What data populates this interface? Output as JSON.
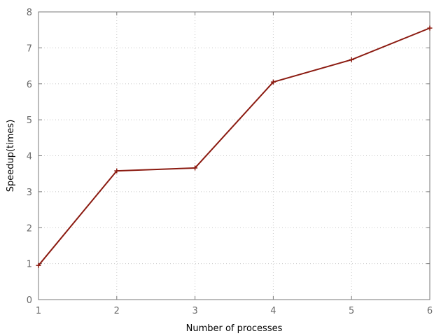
{
  "chart_data": {
    "type": "line",
    "title": "",
    "xlabel": "Number of processes",
    "ylabel": "Speedup(times)",
    "x": [
      1,
      2,
      3,
      4,
      5,
      6
    ],
    "xlim": [
      1,
      6
    ],
    "ylim": [
      0,
      8
    ],
    "xticks": [
      "1",
      "2",
      "3",
      "4",
      "5",
      "6"
    ],
    "yticks": [
      "0",
      "1",
      "2",
      "3",
      "4",
      "5",
      "6",
      "7",
      "8"
    ],
    "grid": true,
    "legend": "none",
    "series": [
      {
        "values": [
          0.95,
          3.58,
          3.66,
          6.05,
          6.67,
          7.55
        ],
        "color": "#8b1a10",
        "marker": "plus"
      }
    ]
  }
}
